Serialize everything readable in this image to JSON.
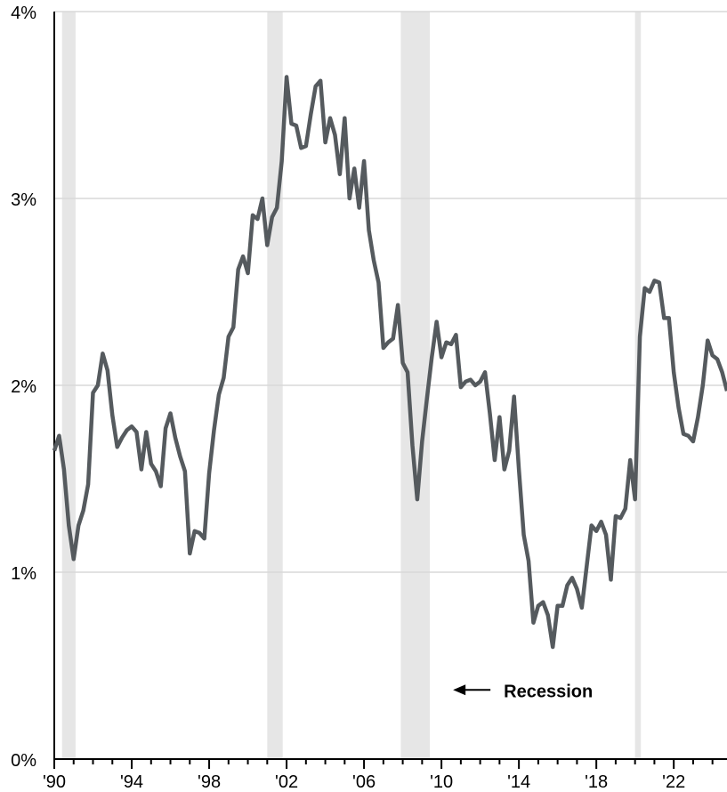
{
  "chart_data": {
    "type": "line",
    "title": "",
    "xlabel": "",
    "ylabel": "",
    "xlim": [
      1990,
      2024.75
    ],
    "ylim": [
      0,
      4
    ],
    "grid": true,
    "y_ticks": [
      {
        "value": 0,
        "label": "0%"
      },
      {
        "value": 1,
        "label": "1%"
      },
      {
        "value": 2,
        "label": "2%"
      },
      {
        "value": 3,
        "label": "3%"
      },
      {
        "value": 4,
        "label": "4%"
      }
    ],
    "x_ticks": [
      {
        "value": 1990,
        "label": "'90"
      },
      {
        "value": 1994,
        "label": "'94"
      },
      {
        "value": 1998,
        "label": "'98"
      },
      {
        "value": 2002,
        "label": "'02"
      },
      {
        "value": 2006,
        "label": "'06"
      },
      {
        "value": 2010,
        "label": "'10"
      },
      {
        "value": 2014,
        "label": "'14"
      },
      {
        "value": 2018,
        "label": "'18"
      },
      {
        "value": 2022,
        "label": "'22"
      }
    ],
    "recessions": [
      {
        "start": 1990.4,
        "end": 1991.1
      },
      {
        "start": 2001.0,
        "end": 2001.8
      },
      {
        "start": 2007.9,
        "end": 2009.4
      },
      {
        "start": 2020.0,
        "end": 2020.3
      }
    ],
    "annotation": {
      "text": "Recession",
      "x": 2010.6,
      "y": 0.37
    },
    "colors": {
      "line": "#555a5e",
      "recession": "#e6e6e6",
      "grid": "#d9d9d9",
      "axis": "#000000"
    },
    "series": [
      {
        "name": "",
        "points": [
          [
            1990.0,
            1.65
          ],
          [
            1990.25,
            1.73
          ],
          [
            1990.5,
            1.55
          ],
          [
            1990.75,
            1.25
          ],
          [
            1991.0,
            1.07
          ],
          [
            1991.25,
            1.25
          ],
          [
            1991.5,
            1.33
          ],
          [
            1991.75,
            1.47
          ],
          [
            1992.0,
            1.96
          ],
          [
            1992.25,
            2.0
          ],
          [
            1992.5,
            2.17
          ],
          [
            1992.75,
            2.08
          ],
          [
            1993.0,
            1.84
          ],
          [
            1993.25,
            1.67
          ],
          [
            1993.5,
            1.72
          ],
          [
            1993.75,
            1.76
          ],
          [
            1994.0,
            1.78
          ],
          [
            1994.25,
            1.75
          ],
          [
            1994.5,
            1.55
          ],
          [
            1994.75,
            1.75
          ],
          [
            1995.0,
            1.58
          ],
          [
            1995.25,
            1.54
          ],
          [
            1995.5,
            1.46
          ],
          [
            1995.75,
            1.77
          ],
          [
            1996.0,
            1.85
          ],
          [
            1996.25,
            1.72
          ],
          [
            1996.5,
            1.62
          ],
          [
            1996.75,
            1.54
          ],
          [
            1997.0,
            1.1
          ],
          [
            1997.25,
            1.22
          ],
          [
            1997.5,
            1.21
          ],
          [
            1997.75,
            1.18
          ],
          [
            1998.0,
            1.53
          ],
          [
            1998.25,
            1.76
          ],
          [
            1998.5,
            1.95
          ],
          [
            1998.75,
            2.04
          ],
          [
            1999.0,
            2.26
          ],
          [
            1999.25,
            2.31
          ],
          [
            1999.5,
            2.62
          ],
          [
            1999.75,
            2.69
          ],
          [
            2000.0,
            2.6
          ],
          [
            2000.25,
            2.91
          ],
          [
            2000.5,
            2.89
          ],
          [
            2000.75,
            3.0
          ],
          [
            2001.0,
            2.75
          ],
          [
            2001.25,
            2.9
          ],
          [
            2001.5,
            2.95
          ],
          [
            2001.75,
            3.2
          ],
          [
            2002.0,
            3.65
          ],
          [
            2002.25,
            3.4
          ],
          [
            2002.5,
            3.39
          ],
          [
            2002.75,
            3.27
          ],
          [
            2003.0,
            3.28
          ],
          [
            2003.25,
            3.45
          ],
          [
            2003.5,
            3.6
          ],
          [
            2003.75,
            3.63
          ],
          [
            2004.0,
            3.3
          ],
          [
            2004.25,
            3.43
          ],
          [
            2004.5,
            3.34
          ],
          [
            2004.75,
            3.13
          ],
          [
            2005.0,
            3.43
          ],
          [
            2005.25,
            3.0
          ],
          [
            2005.5,
            3.16
          ],
          [
            2005.75,
            2.95
          ],
          [
            2006.0,
            3.2
          ],
          [
            2006.25,
            2.83
          ],
          [
            2006.5,
            2.67
          ],
          [
            2006.75,
            2.55
          ],
          [
            2007.0,
            2.2
          ],
          [
            2007.25,
            2.23
          ],
          [
            2007.5,
            2.25
          ],
          [
            2007.75,
            2.43
          ],
          [
            2008.0,
            2.12
          ],
          [
            2008.25,
            2.07
          ],
          [
            2008.5,
            1.68
          ],
          [
            2008.75,
            1.39
          ],
          [
            2009.0,
            1.7
          ],
          [
            2009.25,
            1.93
          ],
          [
            2009.5,
            2.15
          ],
          [
            2009.75,
            2.34
          ],
          [
            2010.0,
            2.15
          ],
          [
            2010.25,
            2.23
          ],
          [
            2010.5,
            2.22
          ],
          [
            2010.75,
            2.27
          ],
          [
            2011.0,
            1.99
          ],
          [
            2011.25,
            2.02
          ],
          [
            2011.5,
            2.03
          ],
          [
            2011.75,
            2.0
          ],
          [
            2012.0,
            2.02
          ],
          [
            2012.25,
            2.07
          ],
          [
            2012.5,
            1.85
          ],
          [
            2012.75,
            1.6
          ],
          [
            2013.0,
            1.83
          ],
          [
            2013.25,
            1.55
          ],
          [
            2013.5,
            1.65
          ],
          [
            2013.75,
            1.94
          ],
          [
            2014.0,
            1.55
          ],
          [
            2014.25,
            1.2
          ],
          [
            2014.5,
            1.06
          ],
          [
            2014.75,
            0.73
          ],
          [
            2015.0,
            0.82
          ],
          [
            2015.25,
            0.84
          ],
          [
            2015.5,
            0.77
          ],
          [
            2015.75,
            0.6
          ],
          [
            2016.0,
            0.82
          ],
          [
            2016.25,
            0.82
          ],
          [
            2016.5,
            0.93
          ],
          [
            2016.75,
            0.97
          ],
          [
            2017.0,
            0.91
          ],
          [
            2017.25,
            0.81
          ],
          [
            2017.5,
            1.03
          ],
          [
            2017.75,
            1.25
          ],
          [
            2018.0,
            1.22
          ],
          [
            2018.25,
            1.27
          ],
          [
            2018.5,
            1.2
          ],
          [
            2018.75,
            0.96
          ],
          [
            2019.0,
            1.3
          ],
          [
            2019.25,
            1.29
          ],
          [
            2019.5,
            1.34
          ],
          [
            2019.75,
            1.6
          ],
          [
            2020.0,
            1.39
          ],
          [
            2020.25,
            2.26
          ],
          [
            2020.5,
            2.52
          ],
          [
            2020.75,
            2.5
          ],
          [
            2021.0,
            2.56
          ],
          [
            2021.25,
            2.55
          ],
          [
            2021.5,
            2.36
          ],
          [
            2021.75,
            2.36
          ],
          [
            2022.0,
            2.07
          ],
          [
            2022.25,
            1.88
          ],
          [
            2022.5,
            1.74
          ],
          [
            2022.75,
            1.73
          ],
          [
            2023.0,
            1.7
          ],
          [
            2023.25,
            1.83
          ],
          [
            2023.5,
            2.0
          ],
          [
            2023.75,
            2.24
          ],
          [
            2024.0,
            2.16
          ],
          [
            2024.25,
            2.14
          ],
          [
            2024.5,
            2.07
          ],
          [
            2024.75,
            1.97
          ]
        ]
      }
    ]
  }
}
